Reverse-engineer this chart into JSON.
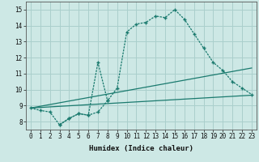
{
  "xlabel": "Humidex (Indice chaleur)",
  "background_color": "#cde8e5",
  "grid_color": "#aacfcc",
  "line_color": "#1a7a6e",
  "xlim": [
    -0.5,
    23.5
  ],
  "ylim": [
    7.5,
    15.5
  ],
  "xticks": [
    0,
    1,
    2,
    3,
    4,
    5,
    6,
    7,
    8,
    9,
    10,
    11,
    12,
    13,
    14,
    15,
    16,
    17,
    18,
    19,
    20,
    21,
    22,
    23
  ],
  "yticks": [
    8,
    9,
    10,
    11,
    12,
    13,
    14,
    15
  ],
  "curve1_x": [
    0,
    1,
    2,
    3,
    4,
    5,
    6,
    7,
    8,
    9,
    10,
    11,
    12,
    13,
    14,
    15,
    16,
    17,
    18,
    19,
    20,
    21,
    22,
    23
  ],
  "curve1_y": [
    8.85,
    8.7,
    8.6,
    7.8,
    8.2,
    8.5,
    8.4,
    8.6,
    9.3,
    10.1,
    13.6,
    14.1,
    14.2,
    14.6,
    14.5,
    15.0,
    14.4,
    13.5,
    12.6,
    11.7,
    11.2,
    10.5,
    10.1,
    9.7
  ],
  "curve2_x": [
    3,
    4,
    5,
    6,
    7,
    8
  ],
  "curve2_y": [
    7.8,
    8.2,
    8.5,
    8.4,
    11.7,
    9.3
  ],
  "line3_x": [
    0,
    23
  ],
  "line3_y": [
    8.85,
    9.65
  ],
  "line4_x": [
    0,
    23
  ],
  "line4_y": [
    8.85,
    11.35
  ]
}
